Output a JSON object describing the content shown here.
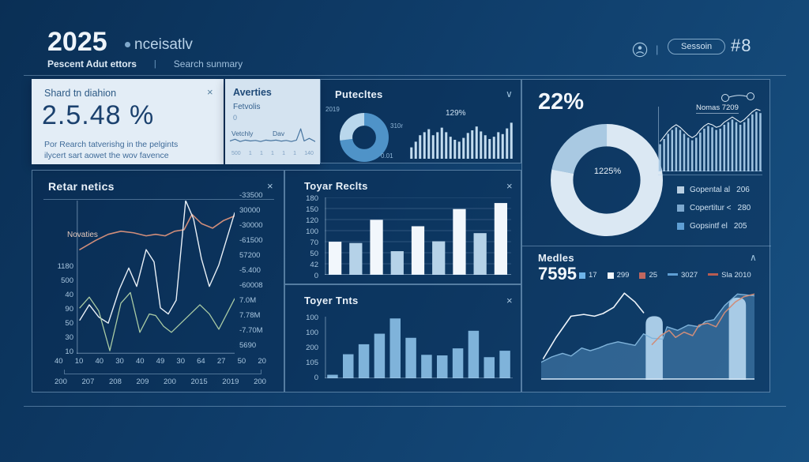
{
  "colors": {
    "legend1": "#b9cfe2",
    "legend2": "#7da9cf",
    "legend3": "#5f9fd4",
    "m_blue": "#6db3e8",
    "m_white": "#f2f7fc",
    "m_red": "#c0675f",
    "m_dash_blue": "#5f9fd4",
    "m_dash_red": "#b85c52"
  },
  "header": {
    "year": "2025",
    "brand": "nceisatlv",
    "nav_left": "Pescent Adut ettors",
    "nav_divider": "|",
    "nav_right": "Search sunmary",
    "icon_divider": "|",
    "session_label": "Sessoin",
    "session_number": "#8"
  },
  "stat_card": {
    "title": "Shard tn diahion",
    "close": "×",
    "value": "2.5.48 %",
    "line1": "Por Rearch tatverishg in the pelgints",
    "line2": "ilycert sart aowet the wov favence"
  },
  "averties": {
    "title": "Averties",
    "sublabel": "Fetvolis",
    "zero": "0",
    "label_left": "Vetchly",
    "label_right": "Dav",
    "ticks": [
      "500",
      "1",
      "1",
      "1",
      "1",
      "1",
      "140"
    ]
  },
  "putedles": {
    "title": "Putecltes",
    "chevron": "∨",
    "donut_label_tl": "2019",
    "donut_label_r": "310r",
    "donut_label_br": "0.01",
    "bars_label": "129%"
  },
  "overview": {
    "headline": "22%",
    "donut_label": "1225%",
    "chart_label": "Nomas 7209",
    "legend": [
      {
        "label": "Gopental al",
        "value": "206"
      },
      {
        "label": "Copertitur <",
        "value": "280"
      },
      {
        "label": "Gopsintf el",
        "value": "205"
      }
    ]
  },
  "medles": {
    "title": "Medles",
    "chevron": "∧",
    "value": "7595",
    "legend": [
      {
        "label": "17"
      },
      {
        "label": "299"
      },
      {
        "label": "25"
      },
      {
        "label": "3027"
      },
      {
        "label": "Sla 2010"
      }
    ]
  },
  "retar": {
    "title": "Retar netics",
    "close": "×",
    "series_label": "Novaties",
    "left_ticks": [
      "1180",
      "500",
      "40",
      "90",
      "50",
      "30",
      "10"
    ],
    "right_ticks": [
      "-33500",
      "30000",
      "-30000",
      "-61500",
      "57200",
      "-5.400",
      "-60008",
      "7.0M",
      "7.78M",
      "-7.70M",
      "5690"
    ],
    "x_row1": [
      "40",
      "10",
      "40",
      "30",
      "40",
      "49",
      "30",
      "64",
      "27",
      "50",
      "20"
    ],
    "x_row2": [
      "200",
      "207",
      "208",
      "209",
      "200",
      "2015",
      "2019",
      "200"
    ]
  },
  "toyar_reclts": {
    "title": "Toyar Reclts",
    "close": "×",
    "y_ticks": [
      "180",
      "150",
      "120",
      "100",
      "70",
      "50",
      "42",
      "0"
    ]
  },
  "toyer_tnts": {
    "title": "Toyer Tnts",
    "close": "×",
    "y_ticks": [
      "100",
      "100",
      "200",
      "105",
      "0"
    ]
  },
  "charts": {
    "averties_spark": {
      "type": "lines",
      "series": [
        {
          "color": "#46749f",
          "width": 1.2,
          "points": [
            [
              0,
              25
            ],
            [
              6,
              35
            ],
            [
              12,
              22
            ],
            [
              18,
              30
            ],
            [
              24,
              25
            ],
            [
              30,
              28
            ],
            [
              36,
              22
            ],
            [
              42,
              30
            ],
            [
              48,
              26
            ],
            [
              54,
              30
            ],
            [
              60,
              24
            ],
            [
              66,
              28
            ],
            [
              72,
              22
            ],
            [
              78,
              30
            ],
            [
              83,
              95
            ],
            [
              87,
              25
            ],
            [
              93,
              40
            ],
            [
              100,
              22
            ]
          ]
        }
      ]
    },
    "putedles_donut": {
      "type": "donut",
      "thickness": 26,
      "segments": [
        {
          "value": 73,
          "color": "#4f93c8"
        },
        {
          "value": 27,
          "color": "#b9d7ec"
        }
      ]
    },
    "putedles_bars": {
      "type": "bars",
      "ratio": 0.55,
      "max": 100,
      "color": "#c3dcef",
      "values": [
        30,
        45,
        62,
        70,
        78,
        62,
        70,
        82,
        70,
        58,
        50,
        45,
        55,
        68,
        75,
        85,
        72,
        62,
        52,
        58,
        70,
        65,
        80,
        95
      ]
    },
    "overview_donut": {
      "type": "donut",
      "thickness": 20,
      "segments": [
        {
          "value": 78,
          "color": "#dbe8f3"
        },
        {
          "value": 22,
          "color": "#a9c9e2"
        }
      ]
    },
    "nomas_bars": {
      "type": "bars",
      "ratio": 0.5,
      "max": 100,
      "color": "#9ec2e0",
      "axes": true,
      "values": [
        42,
        50,
        58,
        64,
        68,
        64,
        58,
        52,
        48,
        52,
        60,
        66,
        70,
        68,
        64,
        66,
        72,
        76,
        80,
        76,
        72,
        76,
        82,
        88,
        92,
        90
      ],
      "line": {
        "color": "#e8f1f8"
      }
    },
    "retar_lines": {
      "type": "lines",
      "axes": {
        "left": true,
        "bottom": true
      },
      "series": [
        {
          "name": "Novaties",
          "color": "#cf8d7a",
          "width": 1.6,
          "points": [
            [
              2,
              68
            ],
            [
              12,
              74
            ],
            [
              20,
              78
            ],
            [
              28,
              80
            ],
            [
              36,
              79
            ],
            [
              44,
              77
            ],
            [
              50,
              78
            ],
            [
              56,
              77
            ],
            [
              62,
              80
            ],
            [
              68,
              81
            ],
            [
              73,
              91
            ],
            [
              79,
              85
            ],
            [
              86,
              82
            ],
            [
              93,
              87
            ],
            [
              100,
              90
            ]
          ]
        },
        {
          "name": "series-2",
          "color": "#e9f0f7",
          "width": 1.4,
          "points": [
            [
              2,
              22
            ],
            [
              8,
              32
            ],
            [
              14,
              24
            ],
            [
              20,
              20
            ],
            [
              27,
              42
            ],
            [
              33,
              56
            ],
            [
              38,
              44
            ],
            [
              44,
              68
            ],
            [
              49,
              60
            ],
            [
              53,
              30
            ],
            [
              58,
              26
            ],
            [
              63,
              35
            ],
            [
              69,
              100
            ],
            [
              74,
              88
            ],
            [
              79,
              62
            ],
            [
              84,
              44
            ],
            [
              90,
              58
            ],
            [
              100,
              92
            ]
          ]
        },
        {
          "name": "series-3",
          "color": "#a9cba4",
          "width": 1.3,
          "points": [
            [
              2,
              30
            ],
            [
              8,
              37
            ],
            [
              14,
              28
            ],
            [
              21,
              2
            ],
            [
              28,
              33
            ],
            [
              34,
              40
            ],
            [
              40,
              14
            ],
            [
              46,
              26
            ],
            [
              50,
              25
            ],
            [
              55,
              18
            ],
            [
              60,
              14
            ],
            [
              66,
              20
            ],
            [
              72,
              26
            ],
            [
              78,
              32
            ],
            [
              84,
              26
            ],
            [
              90,
              16
            ],
            [
              100,
              36
            ]
          ]
        }
      ]
    },
    "toyar_bars": {
      "type": "bars",
      "ratio": 0.62,
      "max": 180,
      "grid": 8,
      "axes": true,
      "colors": [
        "#f2f7fc",
        "#b5d2e8"
      ],
      "values": [
        77,
        74,
        128,
        55,
        113,
        78,
        153,
        97,
        167
      ]
    },
    "tnts_bars": {
      "type": "bars",
      "ratio": 0.68,
      "max": 105,
      "color": "#7fb3da",
      "axes": true,
      "values": [
        6,
        41,
        58,
        76,
        102,
        69,
        40,
        39,
        51,
        81,
        36,
        47
      ]
    },
    "medles_chart": {
      "type": "lines",
      "baseline": true,
      "pill_color": "#a8cbe6",
      "series": [
        {
          "name": "area-blue",
          "color": "#7fb3da",
          "width": 1.4,
          "fill": "rgba(90,150,200,0.45)",
          "points": [
            [
              0,
              20
            ],
            [
              5,
              26
            ],
            [
              10,
              30
            ],
            [
              14,
              27
            ],
            [
              19,
              36
            ],
            [
              23,
              33
            ],
            [
              27,
              36
            ],
            [
              31,
              40
            ],
            [
              36,
              43
            ],
            [
              40,
              41
            ],
            [
              44,
              39
            ],
            [
              48,
              52
            ],
            [
              52,
              47
            ],
            [
              57,
              46
            ],
            [
              59,
              60
            ],
            [
              64,
              56
            ],
            [
              69,
              62
            ],
            [
              74,
              60
            ],
            [
              77,
              66
            ],
            [
              81,
              68
            ],
            [
              86,
              84
            ],
            [
              92,
              97
            ],
            [
              100,
              95
            ]
          ]
        },
        {
          "name": "line-white",
          "color": "#eef4fa",
          "width": 1.6,
          "points": [
            [
              1,
              24
            ],
            [
              7,
              48
            ],
            [
              14,
              72
            ],
            [
              20,
              74
            ],
            [
              25,
              72
            ],
            [
              29,
              75
            ],
            [
              34,
              82
            ],
            [
              39,
              98
            ],
            [
              44,
              88
            ],
            [
              48,
              76
            ]
          ]
        },
        {
          "name": "line-salmon",
          "color": "#cf8d7a",
          "width": 1.5,
          "points": [
            [
              52,
              40
            ],
            [
              56,
              50
            ],
            [
              60,
              56
            ],
            [
              63,
              48
            ],
            [
              67,
              54
            ],
            [
              71,
              50
            ],
            [
              74,
              62
            ],
            [
              78,
              64
            ],
            [
              82,
              60
            ],
            [
              86,
              76
            ],
            [
              91,
              88
            ],
            [
              95,
              94
            ],
            [
              100,
              97
            ]
          ]
        }
      ],
      "pills": [
        {
          "x": 53,
          "h": 72,
          "w": 8
        },
        {
          "x": 92,
          "h": 93,
          "w": 8
        }
      ]
    }
  }
}
